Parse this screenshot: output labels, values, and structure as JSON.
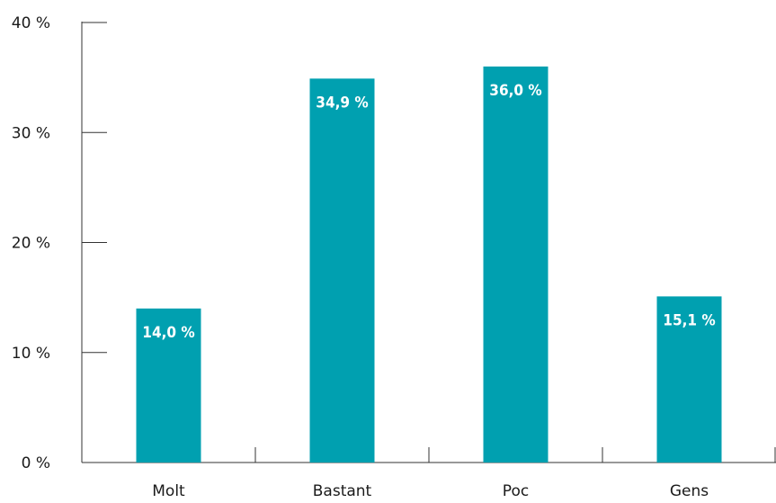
{
  "chart_data": {
    "type": "bar",
    "categories": [
      "Molt",
      "Bastant",
      "Poc",
      "Gens"
    ],
    "values": [
      14.0,
      34.9,
      36.0,
      15.1
    ],
    "value_labels": [
      "14,0 %",
      "34,9 %",
      "36,0 %",
      "15,1 %"
    ],
    "ylim": [
      0,
      40
    ],
    "yticks": [
      0,
      10,
      20,
      30,
      40
    ],
    "ytick_labels": [
      "0 %",
      "10 %",
      "20 %",
      "30 %",
      "40 %"
    ],
    "title": "",
    "xlabel": "",
    "ylabel": "",
    "grid": false,
    "legend": "none",
    "bar_color": "#00a0b0"
  }
}
